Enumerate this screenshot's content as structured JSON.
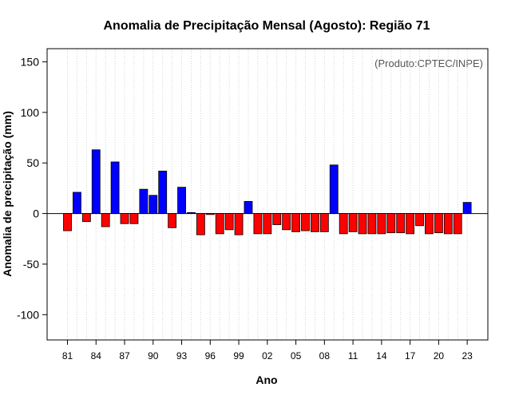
{
  "chart_data": {
    "type": "bar",
    "title": "Anomalia de Precipitação Mensal (Agosto): Região 71",
    "xlabel": "Ano",
    "ylabel": "Anomalia de precipitação (mm)",
    "credit": "(Produto:CPTEC/INPE)",
    "ylim": [
      -125,
      163
    ],
    "yticks": [
      150,
      100,
      50,
      0,
      -50,
      -100
    ],
    "grid": "vertical dotted",
    "years": [
      1981,
      1982,
      1983,
      1984,
      1985,
      1986,
      1987,
      1988,
      1989,
      1990,
      1991,
      1992,
      1993,
      1994,
      1995,
      1996,
      1997,
      1998,
      1999,
      2000,
      2001,
      2002,
      2003,
      2004,
      2005,
      2006,
      2007,
      2008,
      2009,
      2010,
      2011,
      2012,
      2013,
      2014,
      2015,
      2016,
      2017,
      2018,
      2019,
      2020,
      2021,
      2022,
      2023
    ],
    "values": [
      -17,
      21,
      -8,
      63,
      -13,
      51,
      -10,
      -10,
      24,
      18,
      42,
      -14,
      26,
      1,
      -21,
      -1,
      -20,
      -16,
      -21,
      12,
      -20,
      -20,
      -11,
      -16,
      -18,
      -17,
      -18,
      -18,
      48,
      -20,
      -18,
      -20,
      -20,
      -20,
      -19,
      -19,
      -20,
      -12,
      -20,
      -19,
      -20,
      -20,
      11
    ],
    "xtick_labels": [
      "81",
      "84",
      "87",
      "90",
      "93",
      "96",
      "99",
      "02",
      "05",
      "08",
      "11",
      "14",
      "17",
      "20",
      "23"
    ],
    "xtick_years": [
      1981,
      1984,
      1987,
      1990,
      1993,
      1996,
      1999,
      2002,
      2005,
      2008,
      2011,
      2014,
      2017,
      2020,
      2023
    ],
    "colors": {
      "positive": "#0000ff",
      "negative": "#ff0000",
      "outline": "#000000",
      "grid": "#d3d3d3"
    }
  }
}
